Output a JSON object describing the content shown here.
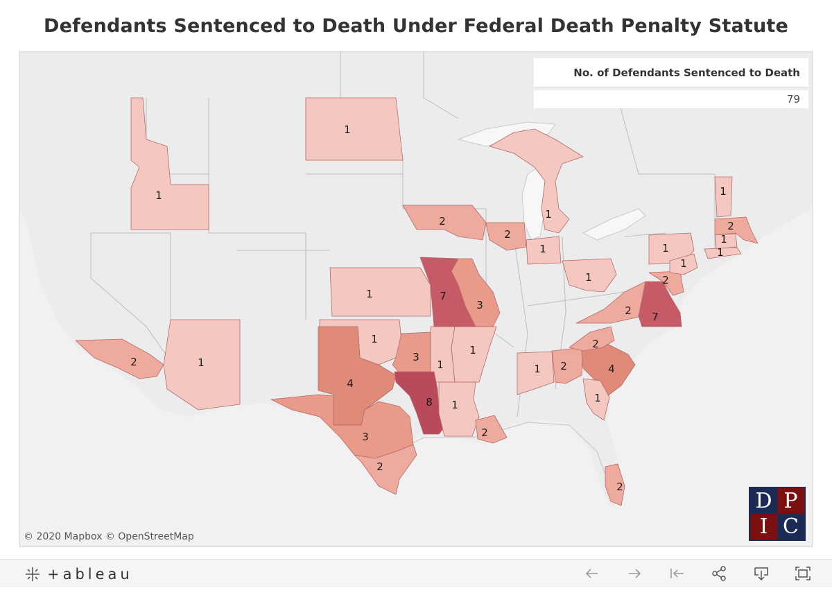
{
  "title": "Defendants Sentenced to Death Under Federal Death Penalty Statute",
  "legend": {
    "header": "No. of Defendants Sentenced to Death",
    "value": "79"
  },
  "map": {
    "credits": "© 2020 Mapbox  © OpenStreetMap",
    "districts": [
      {
        "id": "nd",
        "label": "1",
        "value": 1
      },
      {
        "id": "id",
        "label": "1",
        "value": 1
      },
      {
        "id": "ia",
        "label": "2",
        "value": 2
      },
      {
        "id": "il-n",
        "label": "2",
        "value": 2
      },
      {
        "id": "il-c",
        "label": "1",
        "value": 1
      },
      {
        "id": "mi-w",
        "label": "1",
        "value": 1
      },
      {
        "id": "oh-s",
        "label": "1",
        "value": 1
      },
      {
        "id": "ks",
        "label": "1",
        "value": 1
      },
      {
        "id": "mo-w",
        "label": "7",
        "value": 7
      },
      {
        "id": "mo-e",
        "label": "3",
        "value": 3
      },
      {
        "id": "ca-c",
        "label": "2",
        "value": 2
      },
      {
        "id": "az",
        "label": "1",
        "value": 1
      },
      {
        "id": "ok-n",
        "label": "1",
        "value": 1
      },
      {
        "id": "ok-e",
        "label": "3",
        "value": 3
      },
      {
        "id": "ar-w",
        "label": "1",
        "value": 1
      },
      {
        "id": "ar-e",
        "label": "1",
        "value": 1
      },
      {
        "id": "tx-n",
        "label": "4",
        "value": 4
      },
      {
        "id": "tx-e",
        "label": "8",
        "value": 8
      },
      {
        "id": "tx-w",
        "label": "3",
        "value": 3
      },
      {
        "id": "tx-s",
        "label": "2",
        "value": 2
      },
      {
        "id": "la-w",
        "label": "1",
        "value": 1
      },
      {
        "id": "la-e",
        "label": "2",
        "value": 2
      },
      {
        "id": "al-m",
        "label": "1",
        "value": 1
      },
      {
        "id": "ga-n",
        "label": "2",
        "value": 2
      },
      {
        "id": "sc",
        "label": "4",
        "value": 4
      },
      {
        "id": "ga-s",
        "label": "1",
        "value": 1
      },
      {
        "id": "nc-m",
        "label": "2",
        "value": 2
      },
      {
        "id": "va-w",
        "label": "2",
        "value": 2
      },
      {
        "id": "va-e",
        "label": "7",
        "value": 7
      },
      {
        "id": "md",
        "label": "2",
        "value": 2
      },
      {
        "id": "pa-m",
        "label": "1",
        "value": 1
      },
      {
        "id": "pa-e",
        "label": "1",
        "value": 1
      },
      {
        "id": "vt",
        "label": "1",
        "value": 1
      },
      {
        "id": "ma",
        "label": "2",
        "value": 2
      },
      {
        "id": "ct",
        "label": "1",
        "value": 1
      },
      {
        "id": "ny-e",
        "label": "1",
        "value": 1
      },
      {
        "id": "fl-s",
        "label": "2",
        "value": 2
      }
    ]
  },
  "logo": [
    "D",
    "P",
    "I",
    "C"
  ],
  "toolbar": {
    "brand": "+ableau",
    "buttons": [
      "undo-icon",
      "redo-icon",
      "revert-icon",
      "share-icon",
      "download-icon",
      "fullscreen-icon"
    ]
  },
  "colors": {
    "d1": "#f4c8c0",
    "d2": "#eeaa9c",
    "d3": "#e99a88",
    "d4": "#e08a78",
    "d7": "#c65a66",
    "d8": "#b84a5c"
  }
}
